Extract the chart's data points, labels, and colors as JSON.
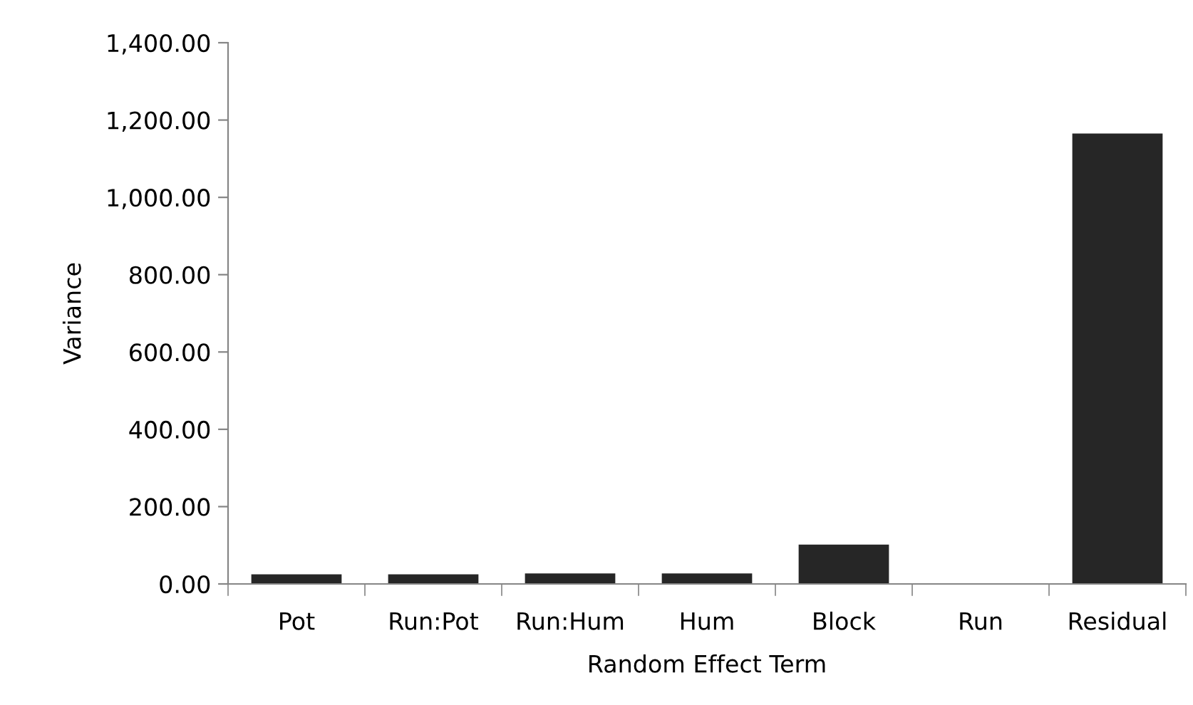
{
  "chart_data": {
    "type": "bar",
    "xlabel": "Random Effect Term",
    "ylabel": "Variance",
    "categories": [
      "Pot",
      "Run:Pot",
      "Run:Hum",
      "Hum",
      "Block",
      "Run",
      "Residual"
    ],
    "values": [
      25,
      25,
      27,
      27,
      102,
      0,
      1165
    ],
    "color": "#262626",
    "ylim": [
      0,
      1400
    ],
    "yticks": [
      {
        "value": 0,
        "label": "0.00"
      },
      {
        "value": 200,
        "label": "200.00"
      },
      {
        "value": 400,
        "label": "400.00"
      },
      {
        "value": 600,
        "label": "600.00"
      },
      {
        "value": 800,
        "label": "800.00"
      },
      {
        "value": 1000,
        "label": "1,000.00"
      },
      {
        "value": 1200,
        "label": "1,200.00"
      },
      {
        "value": 1400,
        "label": "1,400.00"
      }
    ],
    "grid": false,
    "legend": false
  }
}
